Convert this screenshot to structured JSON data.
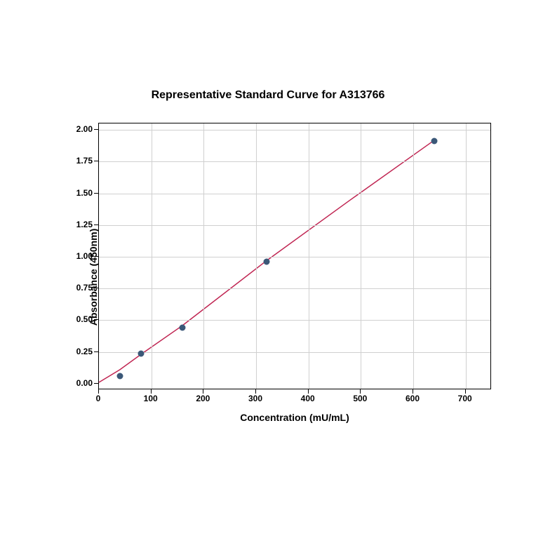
{
  "chart": {
    "type": "scatter",
    "title": "Representative Standard Curve for A313766",
    "title_fontsize": 16,
    "xlabel": "Concentration (mU/mL)",
    "ylabel": "Absorbance (450nm)",
    "label_fontsize": 14,
    "tick_fontsize": 12,
    "xlim": [
      0,
      750
    ],
    "ylim": [
      -0.05,
      2.05
    ],
    "xticks": [
      0,
      100,
      200,
      300,
      400,
      500,
      600,
      700
    ],
    "yticks": [
      0.0,
      0.25,
      0.5,
      0.75,
      1.0,
      1.25,
      1.5,
      1.75,
      2.0
    ],
    "ytick_labels": [
      "0.00",
      "0.25",
      "0.50",
      "0.75",
      "1.00",
      "1.25",
      "1.50",
      "1.75",
      "2.00"
    ],
    "grid_color": "#d0d0d0",
    "background_color": "#ffffff",
    "border_color": "#000000",
    "marker_color": "#3b5878",
    "marker_size": 9,
    "line_color": "#c02552",
    "line_width": 1.5,
    "data_points": [
      {
        "x": 40,
        "y": 0.06
      },
      {
        "x": 80,
        "y": 0.24
      },
      {
        "x": 160,
        "y": 0.44
      },
      {
        "x": 320,
        "y": 0.96
      },
      {
        "x": 640,
        "y": 1.91
      }
    ],
    "curve_points": [
      {
        "x": 0,
        "y": 0.0
      },
      {
        "x": 40,
        "y": 0.1
      },
      {
        "x": 80,
        "y": 0.22
      },
      {
        "x": 160,
        "y": 0.45
      },
      {
        "x": 320,
        "y": 0.96
      },
      {
        "x": 480,
        "y": 1.44
      },
      {
        "x": 640,
        "y": 1.91
      }
    ]
  }
}
